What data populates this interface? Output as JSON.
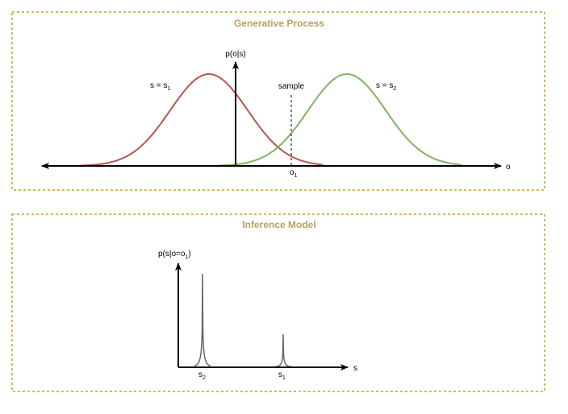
{
  "colors": {
    "panel_border": "#d6b656",
    "panel_title": "#b7a15a",
    "curve_s1": "#b85450",
    "curve_s2": "#82b366",
    "spike": "#666666",
    "axis": "#000000"
  },
  "generative": {
    "title": "Generative Process",
    "y_axis_label": "p(o|s)",
    "x_axis_label": "o",
    "curve_s1": {
      "label_base": "s = s",
      "label_sub": "1"
    },
    "curve_s2": {
      "label_base": "s = s",
      "label_sub": "2"
    },
    "sample_label": "sample",
    "observation": {
      "base": "o",
      "sub": "1"
    }
  },
  "inference": {
    "title": "Inference Model",
    "y_axis_label": {
      "prefix": "p(s|o=o",
      "sub": "1",
      "suffix": ")"
    },
    "x_axis_label": "s",
    "ticks": [
      {
        "base": "s",
        "sub": "2"
      },
      {
        "base": "s",
        "sub": "1"
      }
    ]
  }
}
